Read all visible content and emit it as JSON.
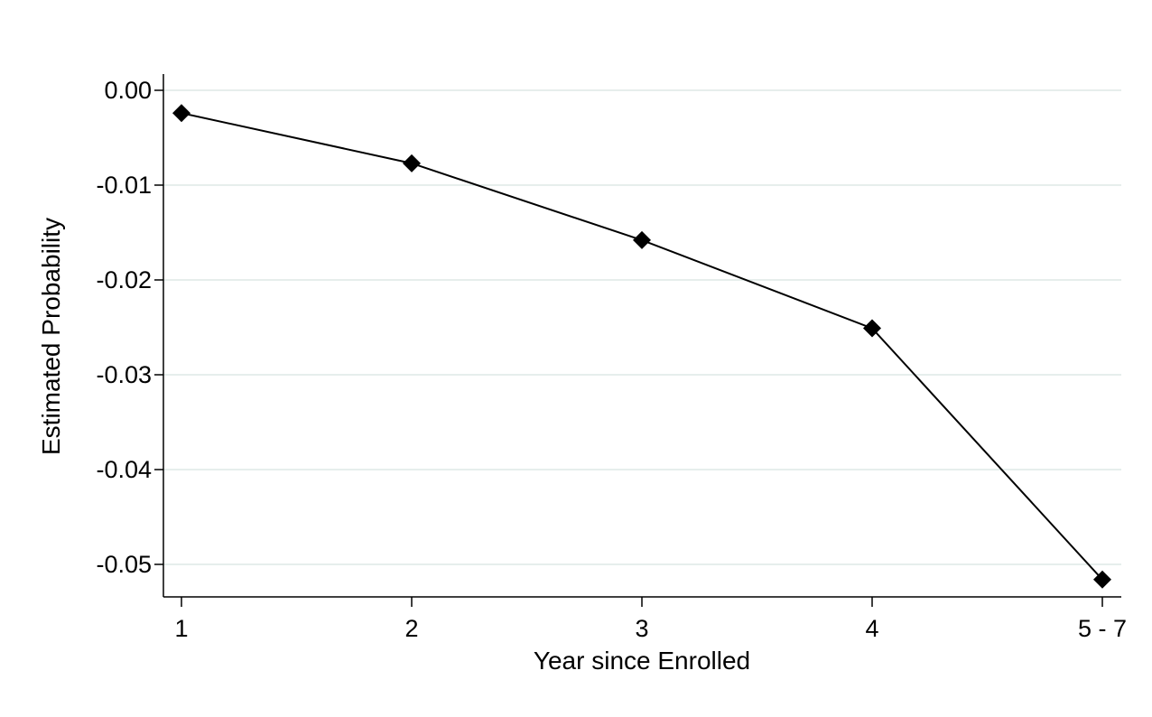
{
  "chart_data": {
    "type": "line",
    "title": "",
    "xlabel": "Year since Enrolled",
    "ylabel": "Estimated Probability",
    "categories": [
      "1",
      "2",
      "3",
      "4",
      "5 - 7"
    ],
    "series": [
      {
        "values": [
          -0.0024,
          -0.0077,
          -0.0158,
          -0.0251,
          -0.0516
        ]
      }
    ],
    "ylim": [
      -0.0535,
      0.0017
    ],
    "yticks": [
      0.0,
      -0.01,
      -0.02,
      -0.03,
      -0.04,
      -0.05
    ],
    "ytick_labels": [
      "0.00",
      "-0.01",
      "-0.02",
      "-0.03",
      "-0.04",
      "-0.05"
    ],
    "grid": true,
    "marker": "diamond",
    "colors": {
      "line": "#000000",
      "grid": "#e6eeec",
      "axis": "#000000"
    }
  }
}
